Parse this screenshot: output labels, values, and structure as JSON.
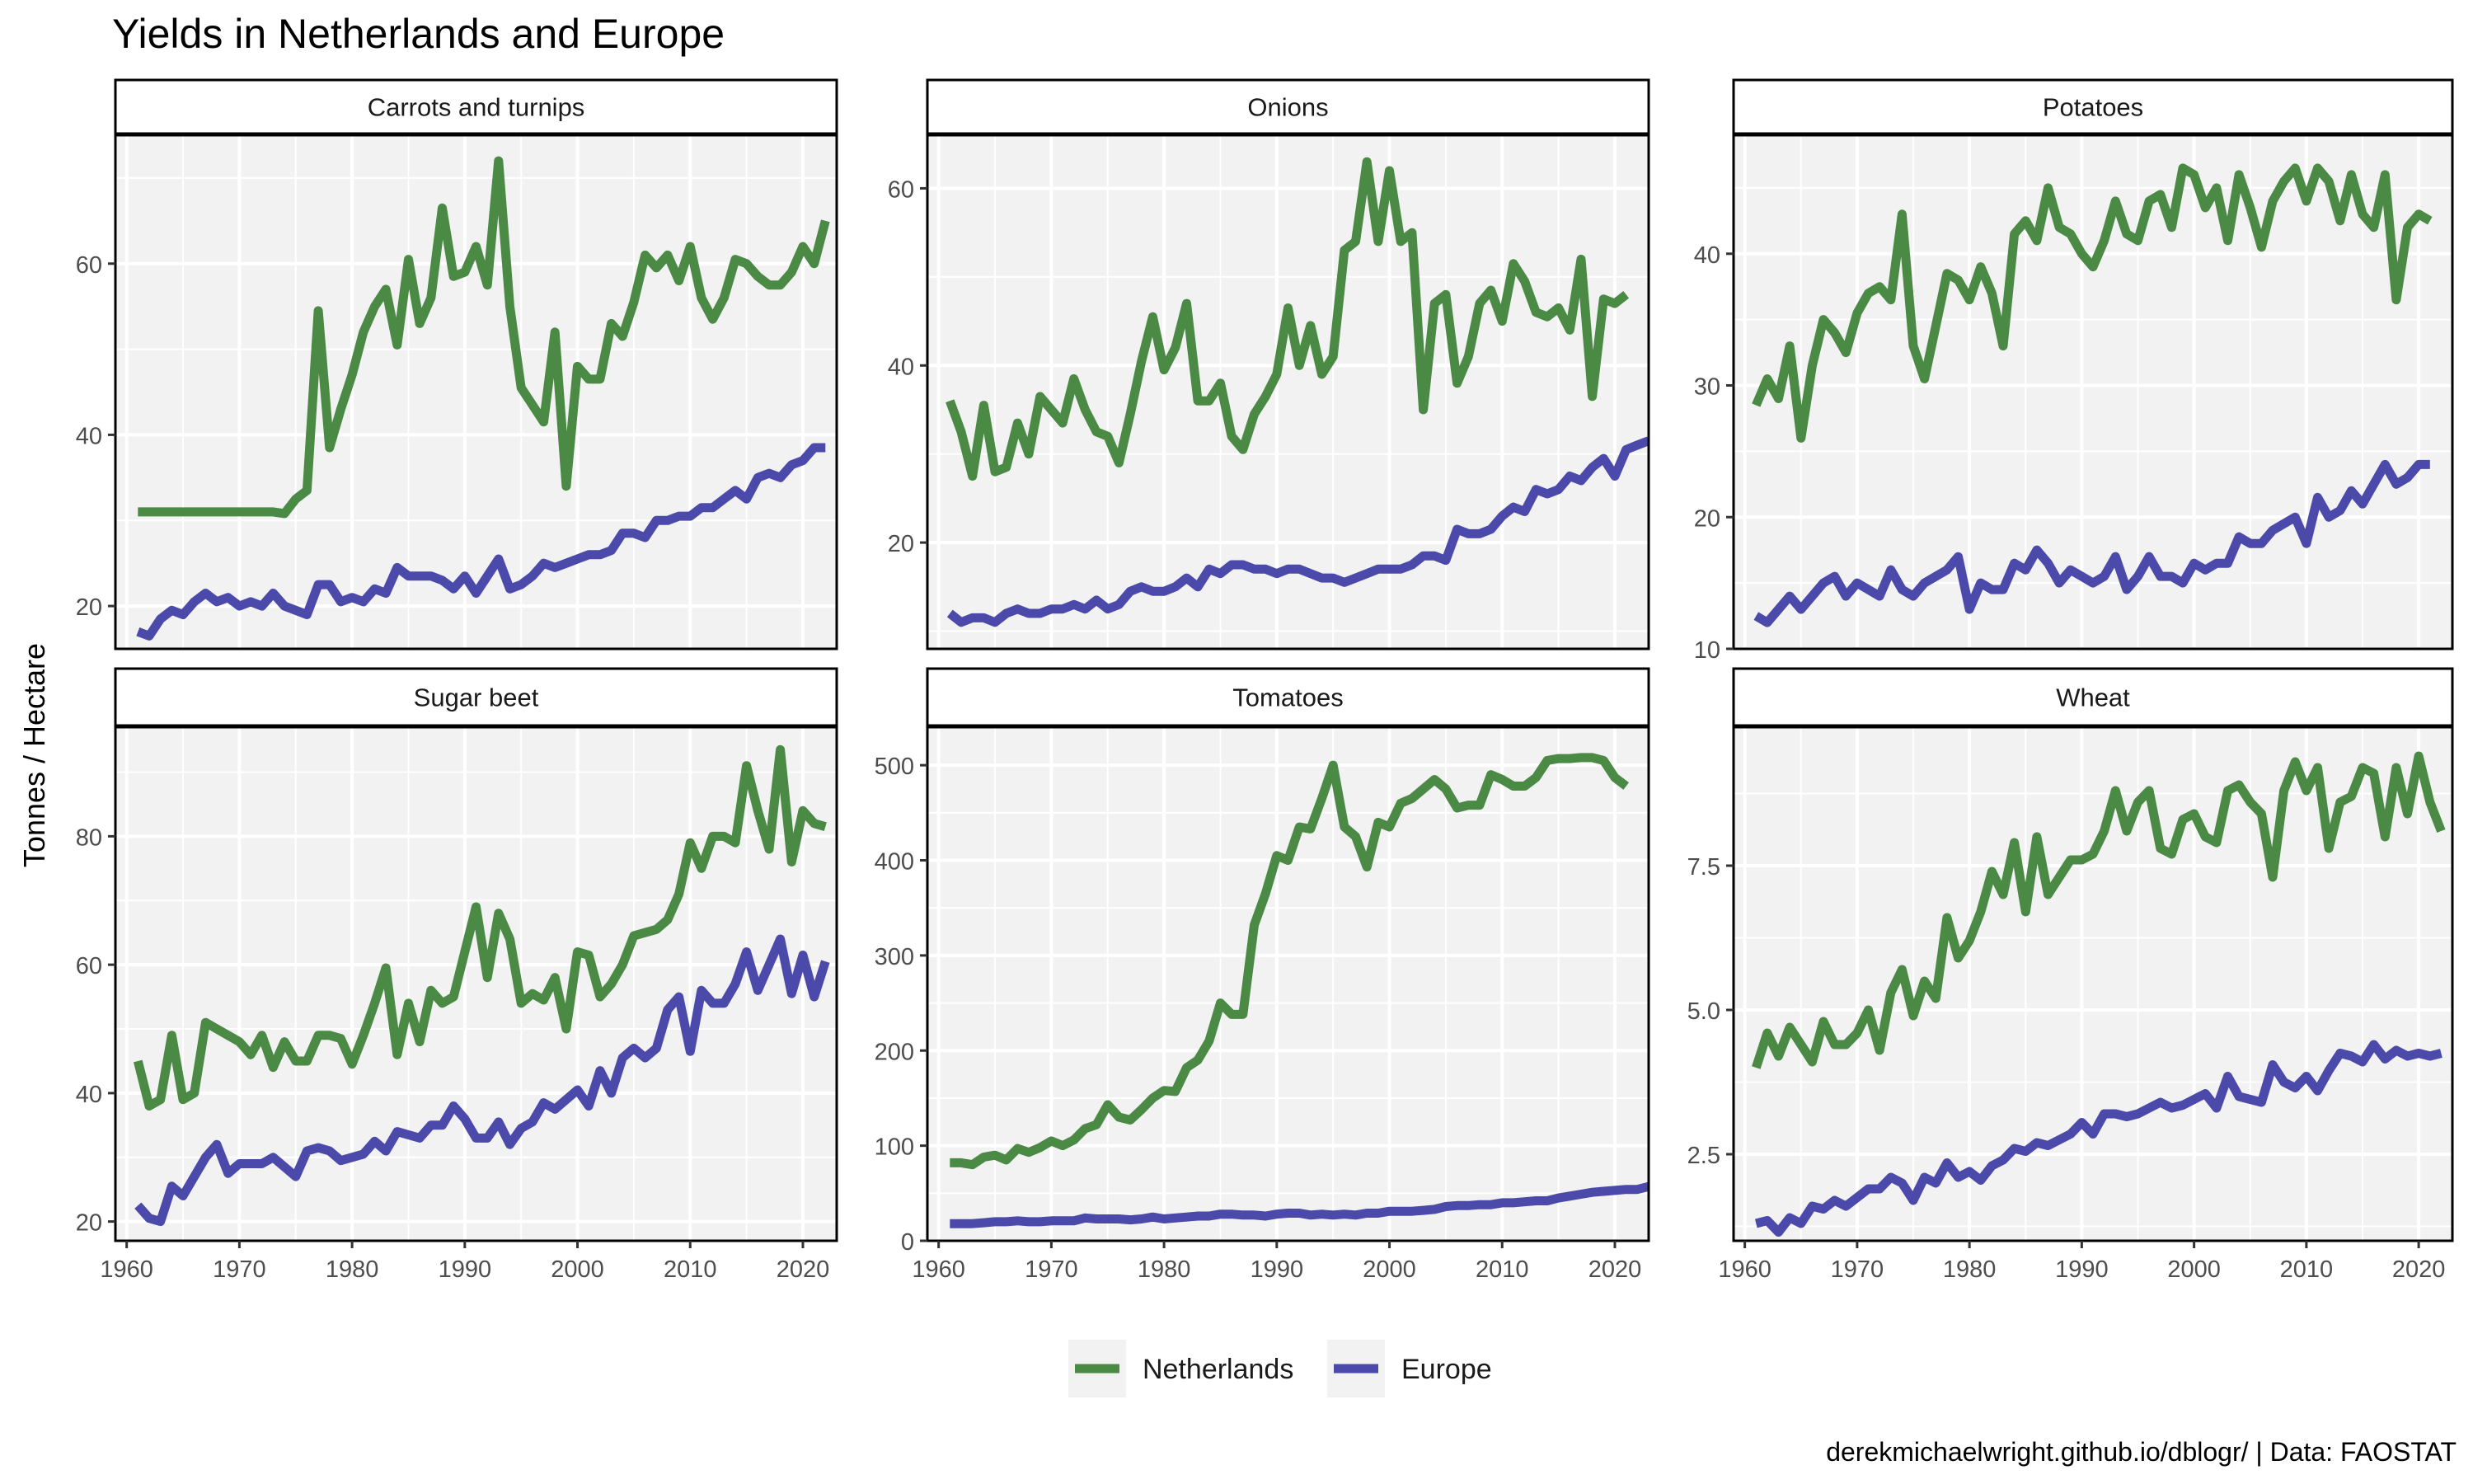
{
  "title": "Yields in Netherlands and Europe",
  "caption": "derekmichaelwright.github.io/dblogr/ | Data: FAOSTAT",
  "colors": {
    "Netherlands": "#4a8a45",
    "Europe": "#4b4aaa",
    "panel_bg": "#f2f2f2",
    "grid": "#ffffff",
    "text": "#4d4d4d"
  },
  "chart_data": {
    "type": "line",
    "title": "Yields in Netherlands and Europe",
    "ylabel": "Tonnes / Hectare",
    "xlabel": "",
    "legend_position": "bottom",
    "series_names": [
      "Netherlands",
      "Europe"
    ],
    "x_ticks": [
      1960,
      1970,
      1980,
      1990,
      2000,
      2010,
      2020
    ],
    "x_range": [
      1959,
      2023
    ],
    "facets": [
      {
        "name": "Carrots and turnips",
        "ylim": [
          15,
          75
        ],
        "y_ticks": [
          20,
          40,
          60
        ],
        "y_tick_labels": [
          "20",
          "40",
          "60"
        ],
        "start_year": 1961,
        "series": [
          {
            "name": "Netherlands",
            "values": [
              31,
              31,
              31,
              31,
              31,
              31,
              31,
              31,
              31,
              31,
              31,
              31,
              31,
              30.8,
              32.5,
              33.5,
              54.5,
              38.5,
              43,
              47,
              52,
              55,
              57,
              50.5,
              60.5,
              53,
              56,
              66.5,
              58.5,
              59,
              62,
              57.5,
              72,
              55,
              45.5,
              43.5,
              41.5,
              52,
              34,
              48,
              46.5,
              46.5,
              53,
              51.5,
              55.5,
              61,
              59.5,
              61,
              58,
              62,
              56,
              53.5,
              56,
              60.5,
              60,
              58.5,
              57.5,
              57.5,
              59,
              62,
              60,
              65
            ]
          },
          {
            "name": "Europe",
            "values": [
              17,
              16.5,
              18.5,
              19.5,
              19,
              20.5,
              21.5,
              20.5,
              21,
              20,
              20.5,
              20,
              21.5,
              20,
              19.5,
              19,
              22.5,
              22.5,
              20.5,
              21,
              20.5,
              22,
              21.5,
              24.5,
              23.5,
              23.5,
              23.5,
              23,
              22,
              23.5,
              21.5,
              23.5,
              25.5,
              22,
              22.5,
              23.5,
              25,
              24.5,
              25,
              25.5,
              26,
              26,
              26.5,
              28.5,
              28.5,
              28,
              30,
              30,
              30.5,
              30.5,
              31.5,
              31.5,
              32.5,
              33.5,
              32.5,
              35,
              35.5,
              35,
              36.5,
              37,
              38.5,
              38.5
            ]
          }
        ]
      },
      {
        "name": "Onions",
        "ylim": [
          8,
          66
        ],
        "y_ticks": [
          20,
          40,
          60
        ],
        "y_tick_labels": [
          "20",
          "40",
          "60"
        ],
        "start_year": 1961,
        "series": [
          {
            "name": "Netherlands",
            "values": [
              36,
              32.5,
              27.5,
              35.5,
              28,
              28.5,
              33.5,
              30,
              36.5,
              35,
              33.5,
              38.5,
              35,
              32.5,
              32,
              29,
              34.5,
              40.5,
              45.5,
              39.5,
              42,
              47,
              36,
              36,
              38,
              32,
              30.5,
              34.5,
              36.5,
              39,
              46.5,
              40,
              44.5,
              39,
              41,
              53,
              54,
              63,
              54,
              62,
              54,
              55,
              35,
              47,
              48,
              38,
              41,
              47,
              48.5,
              45,
              51.5,
              49.5,
              46,
              45.5,
              46.5,
              44,
              52,
              36.5,
              47.5,
              47,
              48
            ]
          },
          {
            "name": "Europe",
            "values": [
              12,
              11,
              11.5,
              11.5,
              11,
              12,
              12.5,
              12,
              12,
              12.5,
              12.5,
              13,
              12.5,
              13.5,
              12.5,
              13,
              14.5,
              15,
              14.5,
              14.5,
              15,
              16,
              15,
              17,
              16.5,
              17.5,
              17.5,
              17,
              17,
              16.5,
              17,
              17,
              16.5,
              16,
              16,
              15.5,
              16,
              16.5,
              17,
              17,
              17,
              17.5,
              18.5,
              18.5,
              18,
              21.5,
              21,
              21,
              21.5,
              23,
              24,
              23.5,
              26,
              25.5,
              26,
              27.5,
              27,
              28.5,
              29.5,
              27.5,
              30.5,
              31,
              31.5
            ]
          }
        ]
      },
      {
        "name": "Potatoes",
        "ylim": [
          10,
          49
        ],
        "y_ticks": [
          10,
          20,
          30,
          40
        ],
        "y_tick_labels": [
          "10",
          "20",
          "30",
          "40"
        ],
        "start_year": 1961,
        "series": [
          {
            "name": "Netherlands",
            "values": [
              28.5,
              30.5,
              29,
              33,
              26,
              31.5,
              35,
              34,
              32.5,
              35.5,
              37,
              37.5,
              36.5,
              43,
              33,
              30.5,
              34.5,
              38.5,
              38,
              36.5,
              39,
              37,
              33,
              41.5,
              42.5,
              41,
              45,
              42,
              41.5,
              40,
              39,
              41,
              44,
              41.5,
              41,
              44,
              44.5,
              42,
              46.5,
              46,
              43.5,
              45,
              41,
              46,
              43.5,
              40.5,
              44,
              45.5,
              46.5,
              44,
              46.5,
              45.5,
              42.5,
              46,
              43,
              42,
              46,
              36.5,
              42,
              43,
              42.5
            ]
          },
          {
            "name": "Europe",
            "values": [
              12.5,
              12,
              13,
              14,
              13,
              14,
              15,
              15.5,
              14,
              15,
              14.5,
              14,
              16,
              14.5,
              14,
              15,
              15.5,
              16,
              17,
              13,
              15,
              14.5,
              14.5,
              16.5,
              16,
              17.5,
              16.5,
              15,
              16,
              15.5,
              15,
              15.5,
              17,
              14.5,
              15.5,
              17,
              15.5,
              15.5,
              15,
              16.5,
              16,
              16.5,
              16.5,
              18.5,
              18,
              18,
              19,
              19.5,
              20,
              18,
              21.5,
              20,
              20.5,
              22,
              21,
              22.5,
              24,
              22.5,
              23,
              24,
              24
            ]
          }
        ]
      },
      {
        "name": "Sugar beet",
        "ylim": [
          17,
          97
        ],
        "y_ticks": [
          20,
          40,
          60,
          80
        ],
        "y_tick_labels": [
          "20",
          "40",
          "60",
          "80"
        ],
        "start_year": 1961,
        "series": [
          {
            "name": "Netherlands",
            "values": [
              45,
              38,
              39,
              49,
              39,
              40,
              51,
              50,
              49,
              48,
              46,
              49,
              44,
              48,
              45,
              45,
              49,
              49,
              48.5,
              44.5,
              49,
              54,
              59.5,
              46,
              54,
              48,
              56,
              54,
              55,
              62,
              69,
              58,
              68,
              64,
              54,
              55.5,
              54.5,
              58,
              50,
              62,
              61.5,
              55,
              57,
              60,
              64.5,
              65,
              65.5,
              67,
              71,
              79,
              75,
              80,
              80,
              79,
              91,
              84,
              78,
              93.5,
              76,
              84,
              82,
              81.5
            ]
          },
          {
            "name": "Europe",
            "values": [
              22.5,
              20.5,
              20,
              25.5,
              24,
              27,
              30,
              32,
              27.5,
              29,
              29,
              29,
              30,
              28.5,
              27,
              31,
              31.5,
              31,
              29.5,
              30,
              30.5,
              32.5,
              31,
              34,
              33.5,
              33,
              35,
              35,
              38,
              36,
              33,
              33,
              35.5,
              32,
              34.5,
              35.5,
              38.5,
              37.5,
              39,
              40.5,
              38,
              43.5,
              40,
              45.5,
              47,
              45.5,
              47,
              53,
              55,
              46.5,
              56,
              54,
              54,
              57,
              62,
              56,
              60,
              64,
              55.5,
              61.5,
              55,
              60.5
            ]
          }
        ]
      },
      {
        "name": "Tomatoes",
        "ylim": [
          0,
          540
        ],
        "y_ticks": [
          0,
          100,
          200,
          300,
          400,
          500
        ],
        "y_tick_labels": [
          "0",
          "100",
          "200",
          "300",
          "400",
          "500"
        ],
        "start_year": 1961,
        "series": [
          {
            "name": "Netherlands",
            "values": [
              82,
              82,
              80,
              88,
              90,
              85,
              97,
              93,
              98,
              105,
              100,
              106,
              118,
              122,
              143,
              130,
              127,
              138,
              150,
              158,
              157,
              182,
              190,
              210,
              250,
              238,
              238,
              332,
              365,
              405,
              400,
              435,
              433,
              465,
              500,
              435,
              425,
              393,
              440,
              435,
              460,
              465,
              475,
              485,
              475,
              455,
              458,
              458,
              490,
              485,
              478,
              478,
              487,
              505,
              507,
              507,
              508,
              508,
              505,
              487,
              478
            ]
          },
          {
            "name": "Europe",
            "values": [
              18,
              18,
              18,
              19,
              20,
              20,
              21,
              20,
              20,
              21,
              21,
              21,
              24,
              23,
              23,
              23,
              22,
              23,
              25,
              23,
              24,
              25,
              26,
              26,
              28,
              28,
              27,
              27,
              26,
              28,
              29,
              29,
              27,
              28,
              27,
              28,
              27,
              29,
              29,
              31,
              31,
              31,
              32,
              33,
              36,
              37,
              37,
              38,
              38,
              40,
              40,
              41,
              42,
              42,
              45,
              47,
              49,
              51,
              52,
              53,
              54,
              54,
              57
            ]
          }
        ]
      },
      {
        "name": "Wheat",
        "ylim": [
          1,
          9.9
        ],
        "y_ticks": [
          2.5,
          5.0,
          7.5
        ],
        "y_tick_labels": [
          "2.5",
          "5.0",
          "7.5"
        ],
        "start_year": 1961,
        "series": [
          {
            "name": "Netherlands",
            "values": [
              4,
              4.6,
              4.2,
              4.7,
              4.4,
              4.1,
              4.8,
              4.4,
              4.4,
              4.6,
              5,
              4.3,
              5.3,
              5.7,
              4.9,
              5.5,
              5.2,
              6.6,
              5.9,
              6.2,
              6.7,
              7.4,
              7,
              7.9,
              6.7,
              8,
              7,
              7.3,
              7.6,
              7.6,
              7.7,
              8.1,
              8.8,
              8.1,
              8.6,
              8.8,
              7.8,
              7.7,
              8.3,
              8.4,
              8,
              7.9,
              8.8,
              8.9,
              8.6,
              8.4,
              7.3,
              8.8,
              9.3,
              8.8,
              9.2,
              7.8,
              8.6,
              8.7,
              9.2,
              9.1,
              8,
              9.2,
              8.4,
              9.4,
              8.6,
              8.1
            ]
          },
          {
            "name": "Europe",
            "values": [
              1.3,
              1.35,
              1.15,
              1.4,
              1.3,
              1.6,
              1.55,
              1.7,
              1.6,
              1.75,
              1.9,
              1.9,
              2.1,
              2.0,
              1.7,
              2.1,
              2.0,
              2.35,
              2.1,
              2.2,
              2.05,
              2.3,
              2.4,
              2.6,
              2.55,
              2.7,
              2.65,
              2.75,
              2.85,
              3.05,
              2.85,
              3.2,
              3.2,
              3.15,
              3.2,
              3.3,
              3.4,
              3.3,
              3.35,
              3.45,
              3.55,
              3.3,
              3.85,
              3.5,
              3.45,
              3.4,
              4.05,
              3.75,
              3.65,
              3.85,
              3.6,
              3.95,
              4.25,
              4.2,
              4.1,
              4.4,
              4.15,
              4.3,
              4.2,
              4.25,
              4.2,
              4.25
            ]
          }
        ]
      }
    ]
  }
}
